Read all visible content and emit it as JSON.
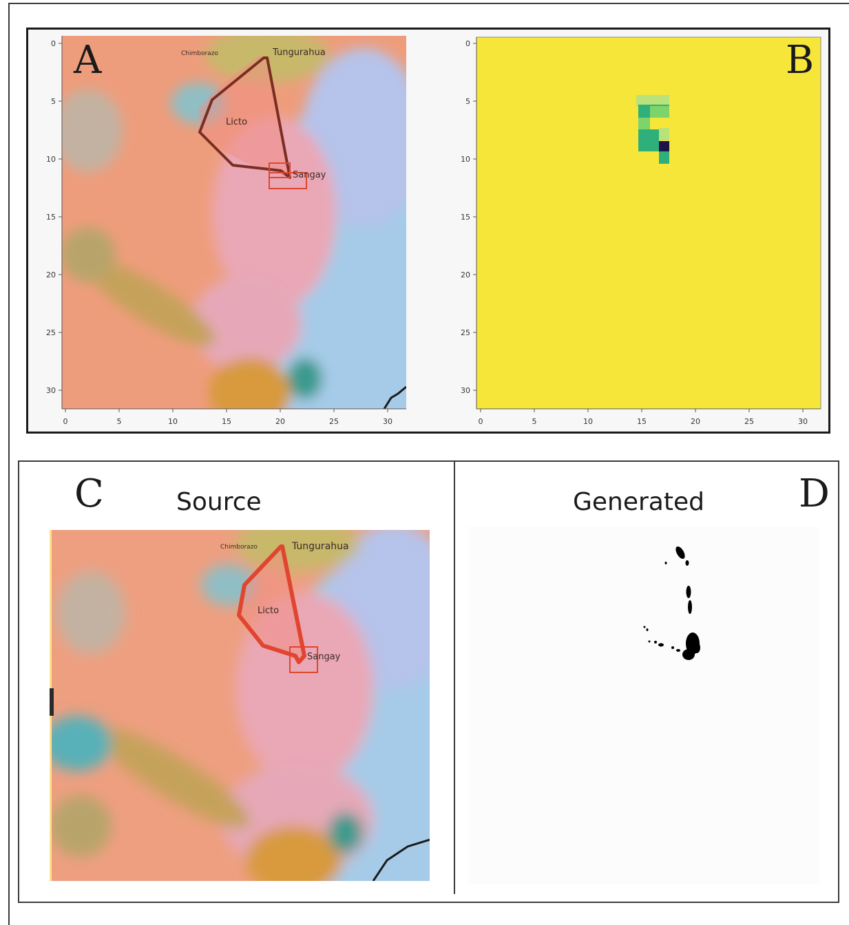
{
  "panels": {
    "a": {
      "letter": "A"
    },
    "b": {
      "letter": "B"
    },
    "c": {
      "letter": "C",
      "title": "Source"
    },
    "d": {
      "letter": "D",
      "title": "Generated"
    }
  },
  "axes": {
    "y_ticks": [
      "0",
      "5",
      "10",
      "15",
      "20",
      "25",
      "30"
    ],
    "x_ticks": [
      "0",
      "5",
      "10",
      "15",
      "20",
      "25",
      "30"
    ]
  },
  "places": {
    "north_left": "Chimborazo",
    "north_right": "Tungurahua",
    "center": "Licto",
    "south": "Sangay"
  },
  "colors": {
    "overlay_brown": "#7a2e22",
    "overlay_red": "#e0452f",
    "heatmap_background": "#f7e63a",
    "heatmap_teal": "#2fb07a",
    "heatmap_light_green": "#7ed36a",
    "heatmap_dark": "#1f1447"
  }
}
